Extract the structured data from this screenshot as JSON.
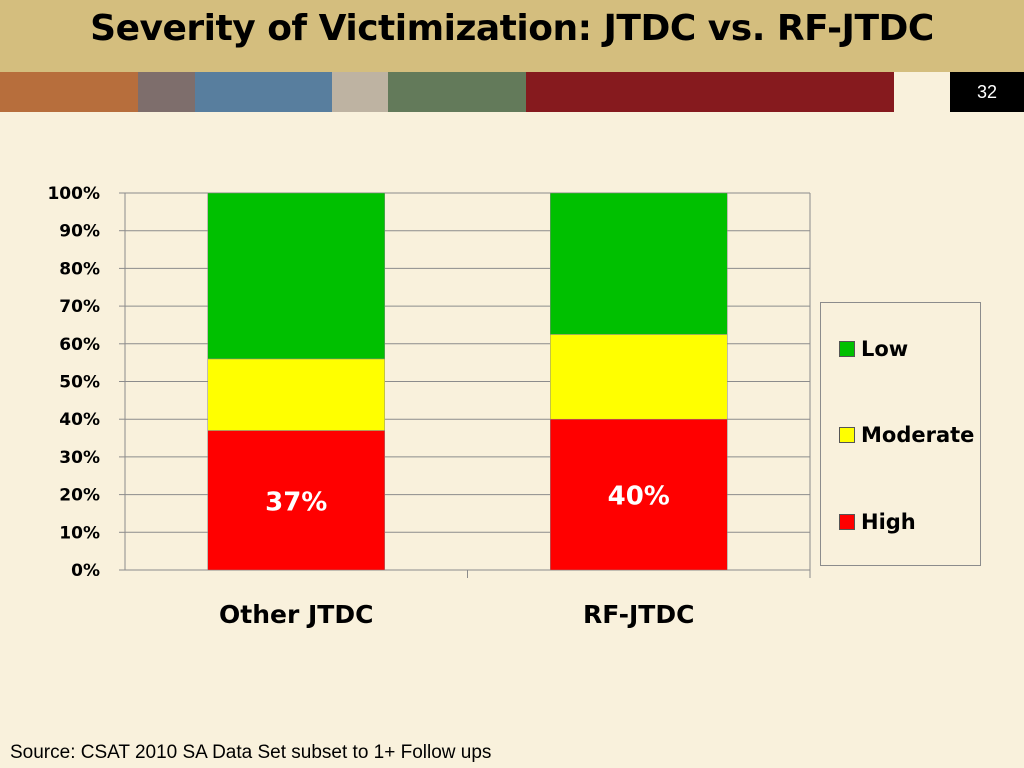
{
  "slide": {
    "title": "Severity of Victimization:  JTDC vs. RF-JTDC",
    "slide_number": "32",
    "source": "Source: CSAT 2010 SA Data Set subset to 1+ Follow ups",
    "strip_colors": [
      "#B76E3C",
      "#7E6E6C",
      "#587E9E",
      "#BEB3A2",
      "#637A5A",
      "#861A1E"
    ]
  },
  "chart_data": {
    "type": "bar",
    "stacked": true,
    "categories": [
      "Other JTDC",
      "RF-JTDC"
    ],
    "series": [
      {
        "name": "High",
        "color": "#FF0000",
        "values": [
          37,
          40
        ],
        "labels": [
          "37%",
          "40%"
        ]
      },
      {
        "name": "Moderate",
        "color": "#FFFF00",
        "values": [
          19,
          22.5
        ]
      },
      {
        "name": "Low",
        "color": "#00C000",
        "values": [
          44,
          37.5
        ]
      }
    ],
    "legend_order": [
      "Low",
      "Moderate",
      "High"
    ],
    "y_ticks": [
      "0%",
      "10%",
      "20%",
      "30%",
      "40%",
      "50%",
      "60%",
      "70%",
      "80%",
      "90%",
      "100%"
    ],
    "ylim": [
      0,
      100
    ],
    "grid": true,
    "legend_position": "right"
  }
}
